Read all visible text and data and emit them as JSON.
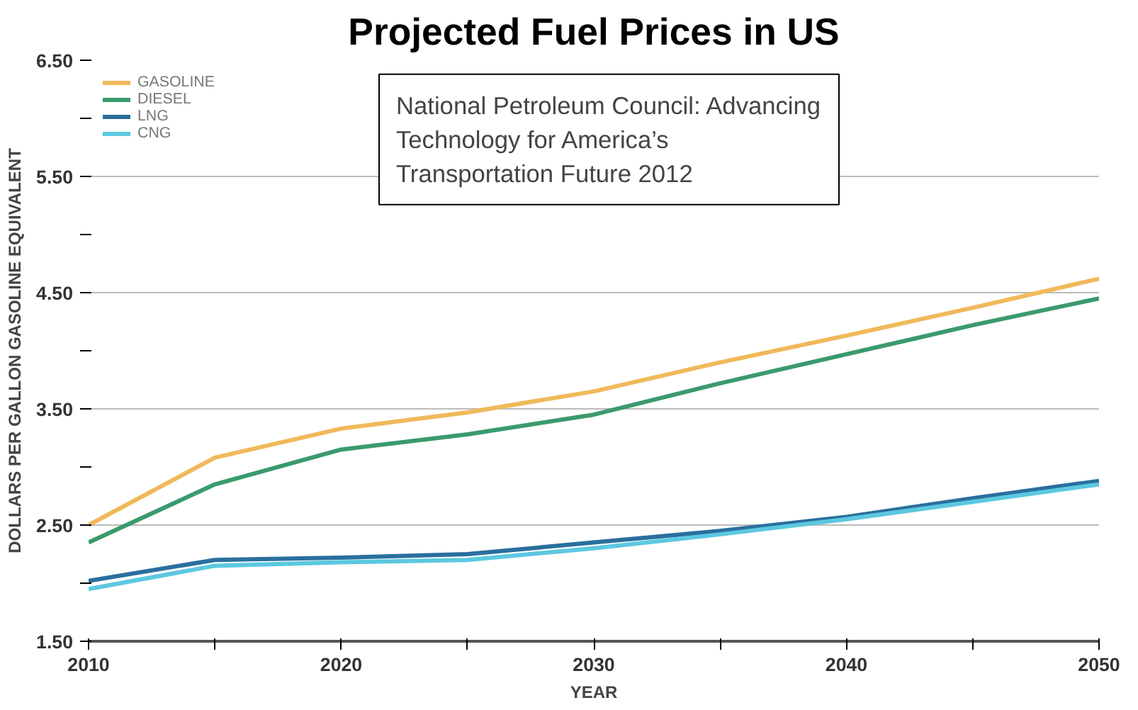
{
  "chart_data": {
    "type": "line",
    "title": "Projected Fuel Prices in US",
    "xlabel": "YEAR",
    "ylabel": "DOLLARS PER GALLON GASOLINE EQUIVALENT",
    "x": [
      2010,
      2015,
      2020,
      2025,
      2030,
      2035,
      2040,
      2045,
      2050
    ],
    "series": [
      {
        "name": "GASOLINE",
        "color": "#f0b95a",
        "values": [
          2.5,
          3.08,
          3.33,
          3.47,
          3.65,
          3.9,
          4.13,
          4.37,
          4.62
        ]
      },
      {
        "name": "DIESEL",
        "color": "#3a9a6e",
        "values": [
          2.35,
          2.85,
          3.15,
          3.28,
          3.45,
          3.72,
          3.97,
          4.22,
          4.45
        ]
      },
      {
        "name": "LNG",
        "color": "#2a6f9e",
        "values": [
          2.02,
          2.2,
          2.22,
          2.25,
          2.35,
          2.45,
          2.57,
          2.73,
          2.88
        ]
      },
      {
        "name": "CNG",
        "color": "#5cc8e0",
        "values": [
          1.95,
          2.15,
          2.18,
          2.2,
          2.3,
          2.42,
          2.55,
          2.7,
          2.85
        ]
      }
    ],
    "xlim": [
      2010,
      2050
    ],
    "xticks": [
      2010,
      {
        "value": 2015,
        "label": null
      },
      2020,
      {
        "value": 2025,
        "label": null
      },
      2030,
      {
        "value": 2035,
        "label": null
      },
      2040,
      {
        "value": 2045,
        "label": null
      },
      2050
    ],
    "ylim": [
      1.5,
      6.5
    ],
    "yticks": [
      {
        "value": 1.5,
        "label": "1.50"
      },
      {
        "value": 2.0,
        "label": null
      },
      {
        "value": 2.5,
        "label": "2.50"
      },
      {
        "value": 3.0,
        "label": null
      },
      {
        "value": 3.5,
        "label": "3.50"
      },
      {
        "value": 4.0,
        "label": null
      },
      {
        "value": 4.5,
        "label": "4.50"
      },
      {
        "value": 5.0,
        "label": null
      },
      {
        "value": 5.5,
        "label": "5.50"
      },
      {
        "value": 6.0,
        "label": null
      },
      {
        "value": 6.5,
        "label": "6.50"
      }
    ],
    "grid": "y",
    "legend": "top left",
    "marker": "none",
    "line_style": "solid",
    "annotations": [
      "National Petroleum Council: Advancing Technology for America’s Transportation Future 2012"
    ]
  }
}
